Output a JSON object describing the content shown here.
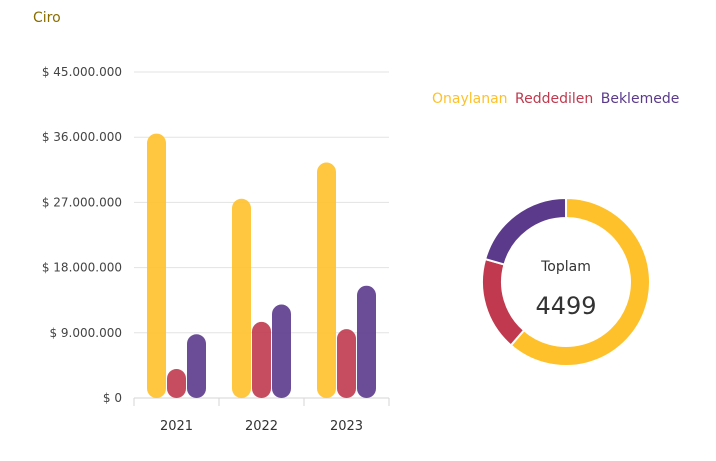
{
  "title": "Ciro",
  "colors": {
    "onaylanan": "#FFC12B",
    "reddedilen": "#C0394E",
    "beklemede": "#5B3A8C",
    "title": "#8a6d00"
  },
  "chart_data": [
    {
      "type": "bar",
      "categories": [
        "2021",
        "2022",
        "2023"
      ],
      "yticks": [
        "$ 0",
        "$ 9.000.000",
        "$ 18.000.000",
        "$ 27.000.000",
        "$ 36.000.000",
        "$ 45.000.000"
      ],
      "ylim": [
        0,
        45000000
      ],
      "grid": true,
      "series": [
        {
          "name": "Onaylanan",
          "values": [
            36500000,
            27500000,
            32500000
          ]
        },
        {
          "name": "Reddedilen",
          "values": [
            4000000,
            10500000,
            9500000
          ]
        },
        {
          "name": "Beklemede",
          "values": [
            8800000,
            12900000,
            15500000
          ]
        }
      ]
    },
    {
      "type": "pie",
      "style": "donut",
      "labels": [
        "Onaylanan",
        "Reddedilen",
        "Beklemede"
      ],
      "shares": [
        0.614,
        0.18,
        0.206
      ],
      "center_title": "Toplam",
      "center_value": "4499"
    }
  ],
  "legend": [
    "Onaylanan",
    "Reddedilen",
    "Beklemede"
  ]
}
